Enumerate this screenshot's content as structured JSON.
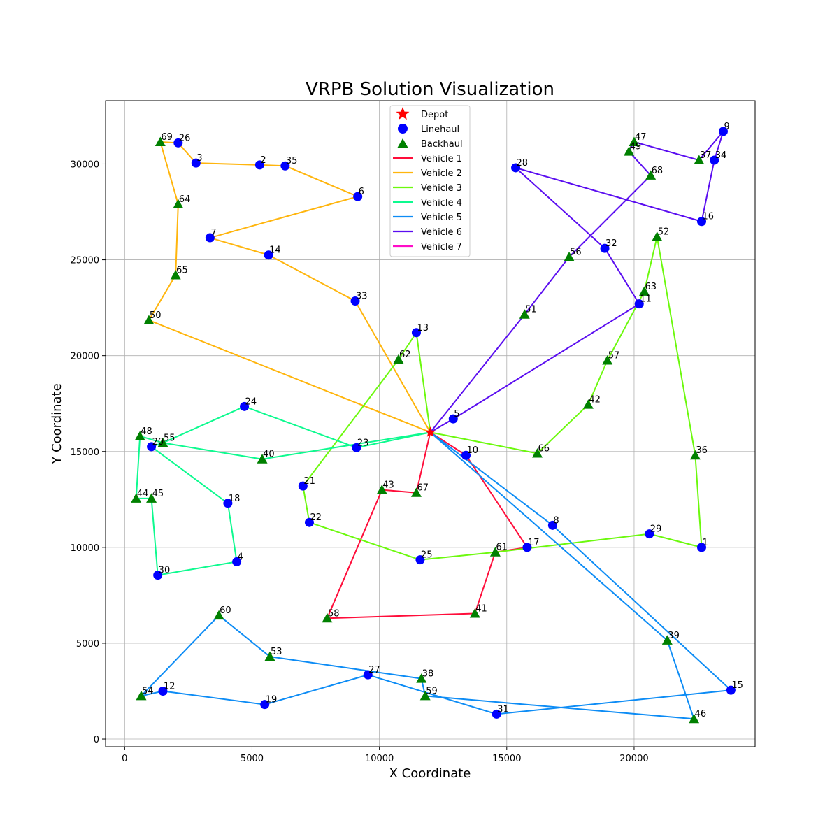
{
  "chart_data": {
    "type": "scatter",
    "title": "VRPB Solution Visualization",
    "xlabel": "X Coordinate",
    "ylabel": "Y Coordinate",
    "xlim": [
      -750,
      24750
    ],
    "ylim": [
      -400,
      33300
    ],
    "xticks": [
      0,
      5000,
      10000,
      15000,
      20000
    ],
    "yticks": [
      0,
      5000,
      10000,
      15000,
      20000,
      25000,
      30000
    ],
    "grid": true,
    "legend_placement": "top-center",
    "depot": {
      "x": 12000,
      "y": 16000,
      "color": "#ff0000"
    },
    "linehaul_color": "#0000ff",
    "backhaul_color": "#008000",
    "legend": [
      {
        "label": "Depot",
        "kind": "star",
        "color": "#ff0000"
      },
      {
        "label": "Linehaul",
        "kind": "circle",
        "color": "#0000ff"
      },
      {
        "label": "Backhaul",
        "kind": "triangle",
        "color": "#008000"
      },
      {
        "label": "Vehicle 1",
        "kind": "line",
        "color": "#ff0d3a"
      },
      {
        "label": "Vehicle 2",
        "kind": "line",
        "color": "#ffb50d"
      },
      {
        "label": "Vehicle 3",
        "kind": "line",
        "color": "#6cf90d"
      },
      {
        "label": "Vehicle 4",
        "kind": "line",
        "color": "#0dfa8f"
      },
      {
        "label": "Vehicle 5",
        "kind": "line",
        "color": "#0d8cf5"
      },
      {
        "label": "Vehicle 6",
        "kind": "line",
        "color": "#5a0df0"
      },
      {
        "label": "Vehicle 7",
        "kind": "line",
        "color": "#ff0dc8"
      }
    ],
    "nodes": [
      {
        "id": "1",
        "x": 22650,
        "y": 10000,
        "type": "linehaul"
      },
      {
        "id": "2",
        "x": 5300,
        "y": 29950,
        "type": "linehaul"
      },
      {
        "id": "3",
        "x": 2800,
        "y": 30050,
        "type": "linehaul"
      },
      {
        "id": "4",
        "x": 4400,
        "y": 9250,
        "type": "linehaul"
      },
      {
        "id": "5",
        "x": 12900,
        "y": 16700,
        "type": "linehaul"
      },
      {
        "id": "6",
        "x": 9150,
        "y": 28300,
        "type": "linehaul"
      },
      {
        "id": "7",
        "x": 3350,
        "y": 26150,
        "type": "linehaul"
      },
      {
        "id": "8",
        "x": 16800,
        "y": 11150,
        "type": "linehaul"
      },
      {
        "id": "9",
        "x": 23500,
        "y": 31700,
        "type": "linehaul"
      },
      {
        "id": "10",
        "x": 13400,
        "y": 14800,
        "type": "linehaul"
      },
      {
        "id": "11",
        "x": 20200,
        "y": 22700,
        "type": "linehaul"
      },
      {
        "id": "12",
        "x": 1500,
        "y": 2500,
        "type": "linehaul"
      },
      {
        "id": "13",
        "x": 11450,
        "y": 21200,
        "type": "linehaul"
      },
      {
        "id": "14",
        "x": 5650,
        "y": 25250,
        "type": "linehaul"
      },
      {
        "id": "15",
        "x": 23800,
        "y": 2550,
        "type": "linehaul"
      },
      {
        "id": "16",
        "x": 22650,
        "y": 27000,
        "type": "linehaul"
      },
      {
        "id": "17",
        "x": 15800,
        "y": 10000,
        "type": "linehaul"
      },
      {
        "id": "18",
        "x": 4050,
        "y": 12300,
        "type": "linehaul"
      },
      {
        "id": "19",
        "x": 5500,
        "y": 1800,
        "type": "linehaul"
      },
      {
        "id": "20",
        "x": 1050,
        "y": 15250,
        "type": "linehaul"
      },
      {
        "id": "21",
        "x": 7000,
        "y": 13200,
        "type": "linehaul"
      },
      {
        "id": "22",
        "x": 7250,
        "y": 11300,
        "type": "linehaul"
      },
      {
        "id": "23",
        "x": 9100,
        "y": 15200,
        "type": "linehaul"
      },
      {
        "id": "24",
        "x": 4700,
        "y": 17350,
        "type": "linehaul"
      },
      {
        "id": "25",
        "x": 11600,
        "y": 9350,
        "type": "linehaul"
      },
      {
        "id": "26",
        "x": 2100,
        "y": 31100,
        "type": "linehaul"
      },
      {
        "id": "27",
        "x": 9550,
        "y": 3350,
        "type": "linehaul"
      },
      {
        "id": "28",
        "x": 15350,
        "y": 29800,
        "type": "linehaul"
      },
      {
        "id": "29",
        "x": 20600,
        "y": 10700,
        "type": "linehaul"
      },
      {
        "id": "30",
        "x": 1300,
        "y": 8550,
        "type": "linehaul"
      },
      {
        "id": "31",
        "x": 14600,
        "y": 1300,
        "type": "linehaul"
      },
      {
        "id": "32",
        "x": 18850,
        "y": 25600,
        "type": "linehaul"
      },
      {
        "id": "33",
        "x": 9050,
        "y": 22850,
        "type": "linehaul"
      },
      {
        "id": "34",
        "x": 23150,
        "y": 30200,
        "type": "linehaul"
      },
      {
        "id": "35",
        "x": 6300,
        "y": 29900,
        "type": "linehaul"
      },
      {
        "id": "36",
        "x": 22400,
        "y": 14800,
        "type": "backhaul"
      },
      {
        "id": "37",
        "x": 22550,
        "y": 30200,
        "type": "backhaul"
      },
      {
        "id": "38",
        "x": 11650,
        "y": 3150,
        "type": "backhaul"
      },
      {
        "id": "39",
        "x": 21300,
        "y": 5150,
        "type": "backhaul"
      },
      {
        "id": "40",
        "x": 5400,
        "y": 14600,
        "type": "backhaul"
      },
      {
        "id": "41",
        "x": 13750,
        "y": 6550,
        "type": "backhaul"
      },
      {
        "id": "42",
        "x": 18200,
        "y": 17450,
        "type": "backhaul"
      },
      {
        "id": "43",
        "x": 10100,
        "y": 13000,
        "type": "backhaul"
      },
      {
        "id": "44",
        "x": 450,
        "y": 12550,
        "type": "backhaul"
      },
      {
        "id": "45",
        "x": 1050,
        "y": 12550,
        "type": "backhaul"
      },
      {
        "id": "46",
        "x": 22350,
        "y": 1050,
        "type": "backhaul"
      },
      {
        "id": "47",
        "x": 20000,
        "y": 31150,
        "type": "backhaul"
      },
      {
        "id": "48",
        "x": 600,
        "y": 15800,
        "type": "backhaul"
      },
      {
        "id": "49",
        "x": 19800,
        "y": 30650,
        "type": "backhaul"
      },
      {
        "id": "50",
        "x": 950,
        "y": 21850,
        "type": "backhaul"
      },
      {
        "id": "51",
        "x": 15700,
        "y": 22150,
        "type": "backhaul"
      },
      {
        "id": "52",
        "x": 20900,
        "y": 26200,
        "type": "backhaul"
      },
      {
        "id": "53",
        "x": 5700,
        "y": 4300,
        "type": "backhaul"
      },
      {
        "id": "54",
        "x": 650,
        "y": 2250,
        "type": "backhaul"
      },
      {
        "id": "55",
        "x": 1500,
        "y": 15450,
        "type": "backhaul"
      },
      {
        "id": "56",
        "x": 17450,
        "y": 25150,
        "type": "backhaul"
      },
      {
        "id": "57",
        "x": 18950,
        "y": 19750,
        "type": "backhaul"
      },
      {
        "id": "58",
        "x": 7950,
        "y": 6300,
        "type": "backhaul"
      },
      {
        "id": "59",
        "x": 11800,
        "y": 2250,
        "type": "backhaul"
      },
      {
        "id": "60",
        "x": 3700,
        "y": 6450,
        "type": "backhaul"
      },
      {
        "id": "61",
        "x": 14550,
        "y": 9750,
        "type": "backhaul"
      },
      {
        "id": "62",
        "x": 10750,
        "y": 19800,
        "type": "backhaul"
      },
      {
        "id": "63",
        "x": 20400,
        "y": 23350,
        "type": "backhaul"
      },
      {
        "id": "64",
        "x": 2100,
        "y": 27900,
        "type": "backhaul"
      },
      {
        "id": "65",
        "x": 2000,
        "y": 24200,
        "type": "backhaul"
      },
      {
        "id": "66",
        "x": 16200,
        "y": 14900,
        "type": "backhaul"
      },
      {
        "id": "67",
        "x": 11450,
        "y": 12850,
        "type": "backhaul"
      },
      {
        "id": "68",
        "x": 20650,
        "y": 29400,
        "type": "backhaul"
      },
      {
        "id": "69",
        "x": 1400,
        "y": 31150,
        "type": "backhaul"
      }
    ],
    "routes": [
      {
        "vehicle": "Vehicle 1",
        "color": "#ff0d3a",
        "path": [
          "depot",
          "10",
          "17",
          "61",
          "41",
          "58",
          "43",
          "67",
          "depot"
        ]
      },
      {
        "vehicle": "Vehicle 2",
        "color": "#ffb50d",
        "path": [
          "depot",
          "33",
          "14",
          "7",
          "6",
          "35",
          "2",
          "3",
          "26",
          "69",
          "64",
          "65",
          "50",
          "depot"
        ]
      },
      {
        "vehicle": "Vehicle 3",
        "color": "#6cf90d",
        "path": [
          "depot",
          "66",
          "42",
          "57",
          "63",
          "52",
          "36",
          "1",
          "29",
          "61",
          "25",
          "22",
          "21",
          "62",
          "13",
          "depot"
        ]
      },
      {
        "vehicle": "Vehicle 4",
        "color": "#0dfa8f",
        "path": [
          "depot",
          "23",
          "24",
          "55",
          "20",
          "18",
          "4",
          "30",
          "45",
          "44",
          "48",
          "55",
          "40",
          "depot"
        ]
      },
      {
        "vehicle": "Vehicle 5",
        "color": "#0d8cf5",
        "path": [
          "depot",
          "8",
          "15",
          "31",
          "27",
          "19",
          "12",
          "54",
          "60",
          "53",
          "38",
          "59",
          "46",
          "39",
          "depot"
        ]
      },
      {
        "vehicle": "Vehicle 6",
        "color": "#5a0df0",
        "path": [
          "depot",
          "5",
          "11",
          "32",
          "28",
          "16",
          "34",
          "9",
          "37",
          "47",
          "49",
          "68",
          "56",
          "51",
          "depot"
        ]
      },
      {
        "vehicle": "Vehicle 7",
        "color": "#ff0dc8",
        "path": []
      }
    ]
  }
}
